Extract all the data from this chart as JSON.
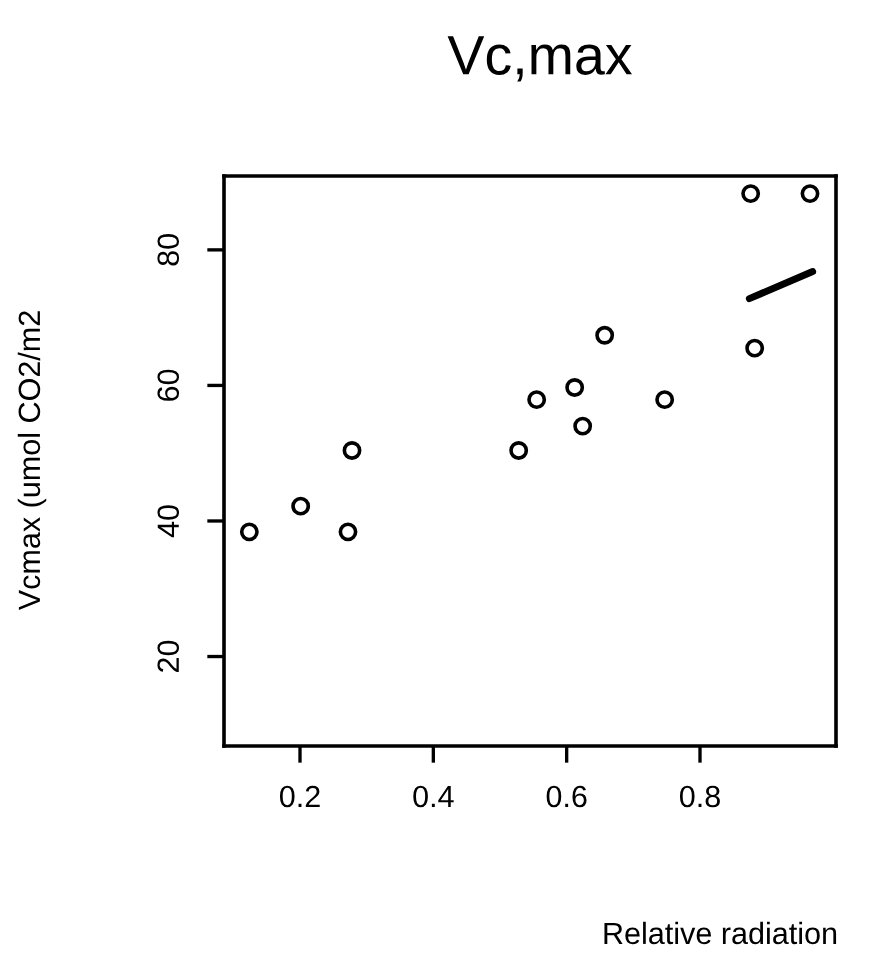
{
  "chart_data": {
    "type": "scatter",
    "title": "Vc,max",
    "xlabel": "Relative radiation",
    "ylabel": "Vcmax (umol CO2/m2",
    "xlim": [
      0.086,
      1.004
    ],
    "ylim": [
      6.8,
      90.9
    ],
    "xticks": [
      0.2,
      0.4,
      0.6,
      0.8
    ],
    "yticks": [
      20,
      40,
      60,
      80
    ],
    "grid": false,
    "series": [
      {
        "marker": "circle",
        "color": "#000000",
        "x": [
          0.124,
          0.201,
          0.272,
          0.278,
          0.528,
          0.555,
          0.612,
          0.624,
          0.657,
          0.747,
          0.876,
          0.882,
          0.965
        ],
        "values": [
          38.4,
          42.2,
          38.4,
          50.4,
          50.4,
          57.9,
          59.7,
          54.0,
          67.4,
          57.9,
          88.3,
          65.5,
          88.3
        ]
      },
      {
        "type": "line",
        "color": "#000000",
        "line_style": "solid",
        "x": [
          0.874,
          0.969
        ],
        "values": [
          72.8,
          76.8
        ]
      }
    ]
  }
}
